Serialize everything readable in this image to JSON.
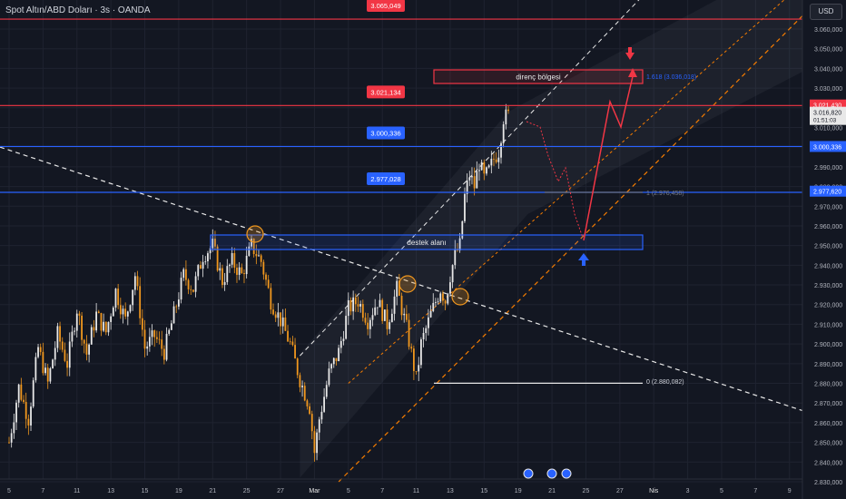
{
  "header": {
    "title": "Spot Altın/ABD Doları · 3s · OANDA"
  },
  "currency_button": "USD",
  "colors": {
    "background": "#131722",
    "bull": "#e8e8e8",
    "bear": "#f0971e",
    "resistance": "#f23645",
    "support": "#2962ff",
    "channel": "#f57c00",
    "projection": "#f23645"
  },
  "chart_data": {
    "type": "candlestick",
    "title": "Spot Altın/ABD Doları · 3s · OANDA",
    "xlabel": "",
    "ylabel": "",
    "ylim": [
      2830,
      3072
    ],
    "price_ticks": [
      2830,
      2840,
      2850,
      2860,
      2870,
      2880,
      2890,
      2900,
      2910,
      2920,
      2930,
      2940,
      2950,
      2960,
      2970,
      2980,
      2990,
      3000,
      3010,
      3020,
      3030,
      3040,
      3050,
      3060
    ],
    "price_tick_labels": [
      "2.830,000",
      "2.840,000",
      "2.850,000",
      "2.860,000",
      "2.870,000",
      "2.880,000",
      "2.890,000",
      "2.900,000",
      "2.910,000",
      "2.920,000",
      "2.930,000",
      "2.940,000",
      "2.950,000",
      "2.960,000",
      "2.970,000",
      "2.980,000",
      "2.990,000",
      "3.000,000",
      "3.010,000",
      "3.020,000",
      "3.030,000",
      "3.040,000",
      "3.050,000",
      "3.060,000"
    ],
    "date_ticks": [
      {
        "label": "5",
        "idx": 0
      },
      {
        "label": "7",
        "idx": 14
      },
      {
        "label": "11",
        "idx": 28
      },
      {
        "label": "13",
        "idx": 42
      },
      {
        "label": "15",
        "idx": 56
      },
      {
        "label": "19",
        "idx": 70
      },
      {
        "label": "21",
        "idx": 84
      },
      {
        "label": "25",
        "idx": 98
      },
      {
        "label": "27",
        "idx": 112
      },
      {
        "label": "Mar",
        "idx": 126
      },
      {
        "label": "5",
        "idx": 140
      },
      {
        "label": "7",
        "idx": 154
      },
      {
        "label": "11",
        "idx": 168
      },
      {
        "label": "13",
        "idx": 182
      },
      {
        "label": "15",
        "idx": 196
      },
      {
        "label": "19",
        "idx": 210
      },
      {
        "label": "21",
        "idx": 224
      },
      {
        "label": "25",
        "idx": 238
      },
      {
        "label": "27",
        "idx": 252
      },
      {
        "label": "Nis",
        "idx": 266
      },
      {
        "label": "3",
        "idx": 280
      },
      {
        "label": "5",
        "idx": 294
      },
      {
        "label": "7",
        "idx": 308
      },
      {
        "label": "9",
        "idx": 322
      }
    ],
    "anchors": [
      [
        0,
        2850
      ],
      [
        4,
        2878
      ],
      [
        8,
        2862
      ],
      [
        12,
        2898
      ],
      [
        16,
        2880
      ],
      [
        20,
        2905
      ],
      [
        24,
        2890
      ],
      [
        28,
        2918
      ],
      [
        32,
        2895
      ],
      [
        36,
        2915
      ],
      [
        40,
        2906
      ],
      [
        44,
        2927
      ],
      [
        48,
        2912
      ],
      [
        52,
        2935
      ],
      [
        56,
        2898
      ],
      [
        60,
        2904
      ],
      [
        64,
        2896
      ],
      [
        68,
        2915
      ],
      [
        72,
        2935
      ],
      [
        76,
        2928
      ],
      [
        80,
        2945
      ],
      [
        84,
        2950
      ],
      [
        88,
        2932
      ],
      [
        92,
        2942
      ],
      [
        96,
        2935
      ],
      [
        100,
        2950
      ],
      [
        104,
        2942
      ],
      [
        108,
        2922
      ],
      [
        112,
        2912
      ],
      [
        116,
        2900
      ],
      [
        120,
        2882
      ],
      [
        124,
        2868
      ],
      [
        126,
        2845
      ],
      [
        128,
        2862
      ],
      [
        132,
        2885
      ],
      [
        136,
        2896
      ],
      [
        140,
        2918
      ],
      [
        144,
        2922
      ],
      [
        148,
        2912
      ],
      [
        152,
        2922
      ],
      [
        156,
        2910
      ],
      [
        160,
        2928
      ],
      [
        164,
        2908
      ],
      [
        168,
        2882
      ],
      [
        170,
        2900
      ],
      [
        174,
        2915
      ],
      [
        178,
        2928
      ],
      [
        180,
        2922
      ],
      [
        182,
        2935
      ],
      [
        184,
        2945
      ],
      [
        186,
        2950
      ],
      [
        188,
        2975
      ],
      [
        190,
        2986
      ],
      [
        192,
        2980
      ],
      [
        194,
        2992
      ],
      [
        196,
        2984
      ],
      [
        198,
        2988
      ],
      [
        200,
        2994
      ],
      [
        202,
        2998
      ],
      [
        204,
        3015
      ],
      [
        206,
        3016
      ]
    ],
    "levels": [
      {
        "name": "resistance",
        "value": 3021.134,
        "label": "3.021,134",
        "color": "#f23645"
      },
      {
        "name": "support-upper",
        "value": 3000.336,
        "label": "3.000,336",
        "color": "#2962ff"
      },
      {
        "name": "support-lower",
        "value": 2977.028,
        "label": "2.977,028",
        "color": "#2962ff"
      },
      {
        "name": "top",
        "value": 3065.049,
        "label": "3.065,049",
        "color": "#f23645"
      }
    ],
    "axis_badges": [
      {
        "label": "3.021,430",
        "color": "#f23645",
        "value": 3021.43
      },
      {
        "label": "3.000,336",
        "color": "#2962ff",
        "value": 3000.336
      },
      {
        "label": "2.977,620",
        "color": "#2962ff",
        "value": 2977.62
      }
    ],
    "current_price": {
      "label": "3.016,820",
      "countdown": "01:51:03",
      "value": 3016.82
    },
    "zones": [
      {
        "name": "resistance-zone",
        "label": "direnç bölgesi",
        "top": 3040,
        "bottom": 3034,
        "from_idx": 170,
        "to_idx": 248
      },
      {
        "name": "support-zone",
        "label": "destek alanı",
        "top": 2955,
        "bottom": 2948,
        "from_idx": 82,
        "to_idx": 248
      }
    ],
    "fib_labels": [
      {
        "label": "1.618 (3.036,018)",
        "value": 3036.018
      },
      {
        "label": "1 (2.976,458)",
        "value": 2976.458
      },
      {
        "label": "0 (2.880,082)",
        "value": 2880.082
      }
    ]
  }
}
